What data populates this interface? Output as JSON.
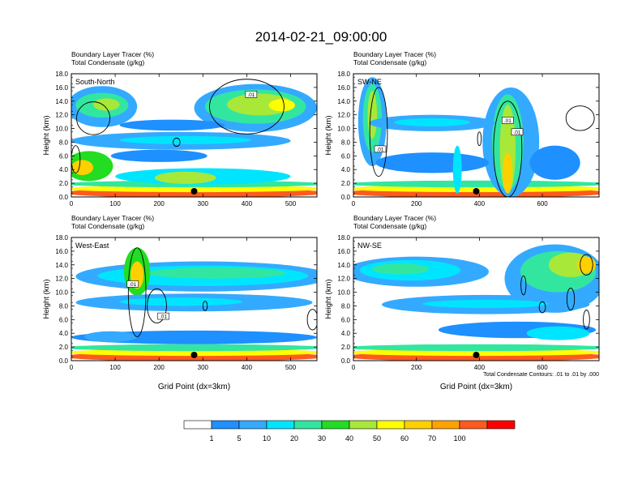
{
  "title": "2014-02-21_09:00:00",
  "colors": {
    "levels": [
      "#ffffff",
      "#1e90ff",
      "#33aaff",
      "#00e5ff",
      "#33e6a0",
      "#22dd22",
      "#a8e838",
      "#ffff00",
      "#ffd000",
      "#ffa200",
      "#ff5a1e",
      "#ff0000"
    ],
    "contour": "#000000",
    "marker": "#000000"
  },
  "chart_data": [
    {
      "type": "heatmap",
      "panel_label": "South-North",
      "title_line1": "Boundary Layer Tracer   (%)",
      "title_line2": "Total Condensate   (g/kg)",
      "xlabel": "",
      "ylabel": "Height (km)",
      "xlim": [
        0,
        560
      ],
      "ylim": [
        0,
        18
      ],
      "xticks": [
        "0",
        "100",
        "200",
        "300",
        "400",
        "500"
      ],
      "yticks": [
        "0.0",
        "2.0",
        "4.0",
        "6.0",
        "8.0",
        "10.0",
        "12.0",
        "14.0",
        "16.0",
        "18.0"
      ],
      "marker_x": 280,
      "contour_labels": [
        {
          "text": ".01",
          "x": 410,
          "y": 15.0
        }
      ],
      "tracer_blobs": [
        {
          "x": 280,
          "y": 0.6,
          "rx": 300,
          "ry": 0.7,
          "level": 10
        },
        {
          "x": 280,
          "y": 1.2,
          "rx": 300,
          "ry": 0.5,
          "level": 7
        },
        {
          "x": 280,
          "y": 1.9,
          "rx": 300,
          "ry": 0.5,
          "level": 4
        },
        {
          "x": 300,
          "y": 3.0,
          "rx": 200,
          "ry": 1.2,
          "level": 3
        },
        {
          "x": 260,
          "y": 2.8,
          "rx": 70,
          "ry": 0.9,
          "level": 6
        },
        {
          "x": 40,
          "y": 4.5,
          "rx": 55,
          "ry": 2.2,
          "level": 5
        },
        {
          "x": 25,
          "y": 4.3,
          "rx": 25,
          "ry": 1.1,
          "level": 8
        },
        {
          "x": 70,
          "y": 13.2,
          "rx": 80,
          "ry": 3.0,
          "level": 2
        },
        {
          "x": 70,
          "y": 13.4,
          "rx": 60,
          "ry": 1.8,
          "level": 4
        },
        {
          "x": 80,
          "y": 13.5,
          "rx": 30,
          "ry": 0.9,
          "level": 6
        },
        {
          "x": 420,
          "y": 13.0,
          "rx": 140,
          "ry": 3.5,
          "level": 2
        },
        {
          "x": 420,
          "y": 13.2,
          "rx": 115,
          "ry": 2.5,
          "level": 4
        },
        {
          "x": 430,
          "y": 13.5,
          "rx": 75,
          "ry": 1.6,
          "level": 6
        },
        {
          "x": 480,
          "y": 13.4,
          "rx": 30,
          "ry": 0.9,
          "level": 7
        },
        {
          "x": 250,
          "y": 8.2,
          "rx": 250,
          "ry": 1.3,
          "level": 2
        },
        {
          "x": 260,
          "y": 8.3,
          "rx": 150,
          "ry": 0.6,
          "level": 3
        },
        {
          "x": 200,
          "y": 6.0,
          "rx": 110,
          "ry": 0.9,
          "level": 1
        },
        {
          "x": 230,
          "y": 10.5,
          "rx": 120,
          "ry": 0.8,
          "level": 1
        }
      ],
      "contours": [
        {
          "x": 50,
          "y": 11.5,
          "rx": 38,
          "ry": 2.4
        },
        {
          "x": 400,
          "y": 13.2,
          "rx": 85,
          "ry": 4.0
        },
        {
          "x": 10,
          "y": 5.5,
          "rx": 10,
          "ry": 2.0
        },
        {
          "x": 240,
          "y": 8.0,
          "rx": 8,
          "ry": 0.6
        }
      ]
    },
    {
      "type": "heatmap",
      "panel_label": "SW-NE",
      "title_line1": "Boundary Layer Tracer   (%)",
      "title_line2": "Total Condensate   (g/kg)",
      "xlabel": "",
      "ylabel": "Height (km)",
      "xlim": [
        0,
        780
      ],
      "ylim": [
        0,
        18
      ],
      "xticks": [
        "0",
        "200",
        "400",
        "600"
      ],
      "yticks": [
        "0.0",
        "2.0",
        "4.0",
        "6.0",
        "8.0",
        "10.0",
        "12.0",
        "14.0",
        "16.0",
        "18.0"
      ],
      "marker_x": 390,
      "contour_labels": [
        {
          "text": ".01",
          "x": 85,
          "y": 7.0
        },
        {
          "text": ".01",
          "x": 490,
          "y": 11.2
        },
        {
          "text": ".01",
          "x": 520,
          "y": 9.5
        }
      ],
      "tracer_blobs": [
        {
          "x": 390,
          "y": 0.6,
          "rx": 420,
          "ry": 0.7,
          "level": 10
        },
        {
          "x": 390,
          "y": 1.2,
          "rx": 420,
          "ry": 0.5,
          "level": 7
        },
        {
          "x": 390,
          "y": 1.9,
          "rx": 420,
          "ry": 0.5,
          "level": 4
        },
        {
          "x": 60,
          "y": 11.0,
          "rx": 45,
          "ry": 6.5,
          "level": 2
        },
        {
          "x": 60,
          "y": 11.5,
          "rx": 30,
          "ry": 5.0,
          "level": 4
        },
        {
          "x": 60,
          "y": 12.0,
          "rx": 15,
          "ry": 3.5,
          "level": 6
        },
        {
          "x": 500,
          "y": 8.0,
          "rx": 90,
          "ry": 8.0,
          "level": 2
        },
        {
          "x": 490,
          "y": 8.0,
          "rx": 50,
          "ry": 7.0,
          "level": 4
        },
        {
          "x": 490,
          "y": 7.0,
          "rx": 25,
          "ry": 6.5,
          "level": 6
        },
        {
          "x": 490,
          "y": 3.5,
          "rx": 15,
          "ry": 3.0,
          "level": 8
        },
        {
          "x": 250,
          "y": 10.8,
          "rx": 200,
          "ry": 1.2,
          "level": 2
        },
        {
          "x": 250,
          "y": 10.9,
          "rx": 120,
          "ry": 0.6,
          "level": 3
        },
        {
          "x": 250,
          "y": 5.0,
          "rx": 180,
          "ry": 1.5,
          "level": 1
        },
        {
          "x": 640,
          "y": 5.0,
          "rx": 80,
          "ry": 2.5,
          "level": 1
        },
        {
          "x": 330,
          "y": 4.0,
          "rx": 14,
          "ry": 3.5,
          "level": 3
        }
      ],
      "contours": [
        {
          "x": 80,
          "y": 9.5,
          "rx": 28,
          "ry": 6.5
        },
        {
          "x": 490,
          "y": 7.0,
          "rx": 45,
          "ry": 7.0
        },
        {
          "x": 720,
          "y": 11.5,
          "rx": 45,
          "ry": 1.8
        },
        {
          "x": 400,
          "y": 8.5,
          "rx": 6,
          "ry": 1.0
        }
      ]
    },
    {
      "type": "heatmap",
      "panel_label": "West-East",
      "title_line1": "Boundary Layer Tracer   (%)",
      "title_line2": "Total Condensate   (g/kg)",
      "xlabel": "Grid Point (dx=3km)",
      "ylabel": "Height (km)",
      "xlim": [
        0,
        560
      ],
      "ylim": [
        0,
        18
      ],
      "xticks": [
        "0",
        "100",
        "200",
        "300",
        "400",
        "500"
      ],
      "yticks": [
        "0.0",
        "2.0",
        "4.0",
        "6.0",
        "8.0",
        "10.0",
        "12.0",
        "14.0",
        "16.0",
        "18.0"
      ],
      "marker_x": 280,
      "contour_labels": [
        {
          "text": ".01",
          "x": 140,
          "y": 11.2
        },
        {
          "text": ".01",
          "x": 210,
          "y": 6.5
        }
      ],
      "tracer_blobs": [
        {
          "x": 280,
          "y": 0.6,
          "rx": 300,
          "ry": 0.7,
          "level": 10
        },
        {
          "x": 280,
          "y": 1.2,
          "rx": 300,
          "ry": 0.5,
          "level": 7
        },
        {
          "x": 280,
          "y": 1.9,
          "rx": 300,
          "ry": 0.5,
          "level": 4
        },
        {
          "x": 300,
          "y": 12.3,
          "rx": 290,
          "ry": 2.2,
          "level": 2
        },
        {
          "x": 300,
          "y": 12.4,
          "rx": 240,
          "ry": 1.5,
          "level": 3
        },
        {
          "x": 330,
          "y": 12.8,
          "rx": 160,
          "ry": 0.8,
          "level": 4
        },
        {
          "x": 150,
          "y": 13.0,
          "rx": 30,
          "ry": 3.5,
          "level": 5
        },
        {
          "x": 150,
          "y": 12.5,
          "rx": 15,
          "ry": 2.0,
          "level": 8
        },
        {
          "x": 280,
          "y": 8.5,
          "rx": 270,
          "ry": 1.3,
          "level": 2
        },
        {
          "x": 250,
          "y": 8.6,
          "rx": 140,
          "ry": 0.6,
          "level": 3
        },
        {
          "x": 280,
          "y": 3.4,
          "rx": 280,
          "ry": 1.0,
          "level": 1
        },
        {
          "x": 90,
          "y": 3.5,
          "rx": 60,
          "ry": 0.8,
          "level": 2
        }
      ],
      "contours": [
        {
          "x": 150,
          "y": 10.0,
          "rx": 20,
          "ry": 6.5
        },
        {
          "x": 195,
          "y": 8.0,
          "rx": 22,
          "ry": 2.5
        },
        {
          "x": 550,
          "y": 6.0,
          "rx": 12,
          "ry": 1.5
        },
        {
          "x": 305,
          "y": 8.0,
          "rx": 5,
          "ry": 0.7
        }
      ]
    },
    {
      "type": "heatmap",
      "panel_label": "NW-SE",
      "title_line1": "Boundary Layer Tracer   (%)",
      "title_line2": "Total Condensate   (g/kg)",
      "xlabel": "Grid Point (dx=3km)",
      "ylabel": "Height (km)",
      "xlim": [
        0,
        780
      ],
      "ylim": [
        0,
        18
      ],
      "xticks": [
        "0",
        "200",
        "400",
        "600"
      ],
      "yticks": [
        "0.0",
        "2.0",
        "4.0",
        "6.0",
        "8.0",
        "10.0",
        "12.0",
        "14.0",
        "16.0",
        "18.0"
      ],
      "marker_x": 390,
      "footnote": "Total Condensate Contours: .01 to .01 by .000",
      "contour_labels": [],
      "tracer_blobs": [
        {
          "x": 390,
          "y": 0.6,
          "rx": 420,
          "ry": 0.7,
          "level": 10
        },
        {
          "x": 390,
          "y": 1.2,
          "rx": 420,
          "ry": 0.5,
          "level": 7
        },
        {
          "x": 390,
          "y": 1.9,
          "rx": 420,
          "ry": 0.5,
          "level": 4
        },
        {
          "x": 200,
          "y": 13.0,
          "rx": 230,
          "ry": 2.2,
          "level": 2
        },
        {
          "x": 180,
          "y": 13.2,
          "rx": 160,
          "ry": 1.5,
          "level": 3
        },
        {
          "x": 150,
          "y": 13.4,
          "rx": 90,
          "ry": 0.8,
          "level": 4
        },
        {
          "x": 640,
          "y": 12.0,
          "rx": 160,
          "ry": 5.0,
          "level": 2
        },
        {
          "x": 650,
          "y": 13.0,
          "rx": 120,
          "ry": 3.0,
          "level": 4
        },
        {
          "x": 690,
          "y": 14.0,
          "rx": 70,
          "ry": 1.8,
          "level": 6
        },
        {
          "x": 740,
          "y": 14.0,
          "rx": 30,
          "ry": 1.2,
          "level": 8
        },
        {
          "x": 420,
          "y": 8.2,
          "rx": 330,
          "ry": 1.4,
          "level": 2
        },
        {
          "x": 420,
          "y": 8.3,
          "rx": 200,
          "ry": 0.6,
          "level": 3
        },
        {
          "x": 520,
          "y": 4.5,
          "rx": 250,
          "ry": 1.2,
          "level": 1
        },
        {
          "x": 650,
          "y": 4.0,
          "rx": 100,
          "ry": 1.0,
          "level": 3
        }
      ],
      "contours": [
        {
          "x": 740,
          "y": 14.0,
          "rx": 20,
          "ry": 1.5
        },
        {
          "x": 690,
          "y": 9.0,
          "rx": 12,
          "ry": 1.6
        },
        {
          "x": 540,
          "y": 11.0,
          "rx": 8,
          "ry": 1.4
        },
        {
          "x": 600,
          "y": 7.8,
          "rx": 10,
          "ry": 0.8
        },
        {
          "x": 740,
          "y": 6.0,
          "rx": 10,
          "ry": 1.4
        }
      ]
    }
  ],
  "colorbar": {
    "labels": [
      "1",
      "5",
      "10",
      "20",
      "30",
      "40",
      "50",
      "60",
      "70",
      "100"
    ]
  }
}
